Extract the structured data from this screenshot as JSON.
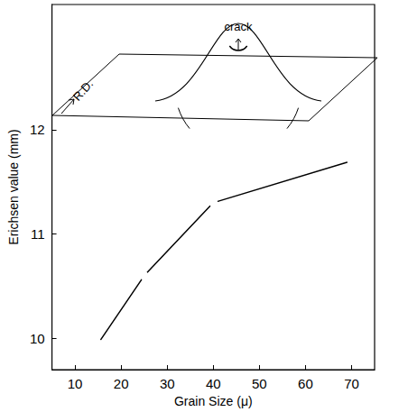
{
  "chart_data": {
    "type": "line",
    "x_label": "Grain Size (μ)",
    "y_label": "Erichsen value (mm)",
    "annotations": [
      "crack",
      "R.D."
    ],
    "x": [
      15,
      25,
      40,
      70
    ],
    "values": [
      9.95,
      10.6,
      11.3,
      11.7
    ],
    "color": "#000000",
    "marker": "open_circle",
    "line_style": "solid",
    "xlim": [
      5,
      75
    ],
    "xticks": [
      10,
      20,
      30,
      40,
      50,
      60,
      70
    ],
    "ylim": [
      9.7,
      13.2
    ],
    "yticks": [
      10,
      11,
      12
    ],
    "grid": false
  }
}
